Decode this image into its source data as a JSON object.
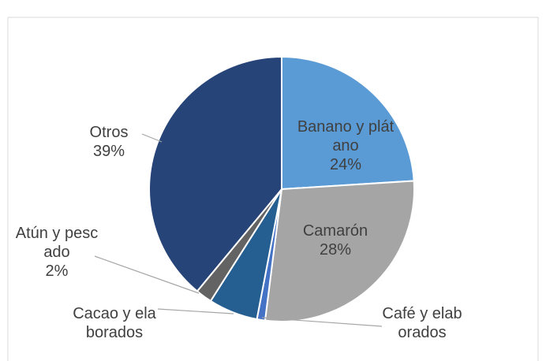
{
  "chart_data": {
    "type": "pie",
    "categories": [
      "Banano y plátano",
      "Camarón",
      "Café y elaborados",
      "Cacao y elaborados",
      "Atún y pescado",
      "Otros"
    ],
    "values": [
      24,
      28,
      1,
      6,
      2,
      39
    ],
    "value_labels": [
      "24%",
      "28%",
      null,
      null,
      "2%",
      "39%"
    ],
    "colors": [
      "#5b9bd5",
      "#a5a5a5",
      "#4472c4",
      "#255e91",
      "#636363",
      "#264478"
    ]
  }
}
